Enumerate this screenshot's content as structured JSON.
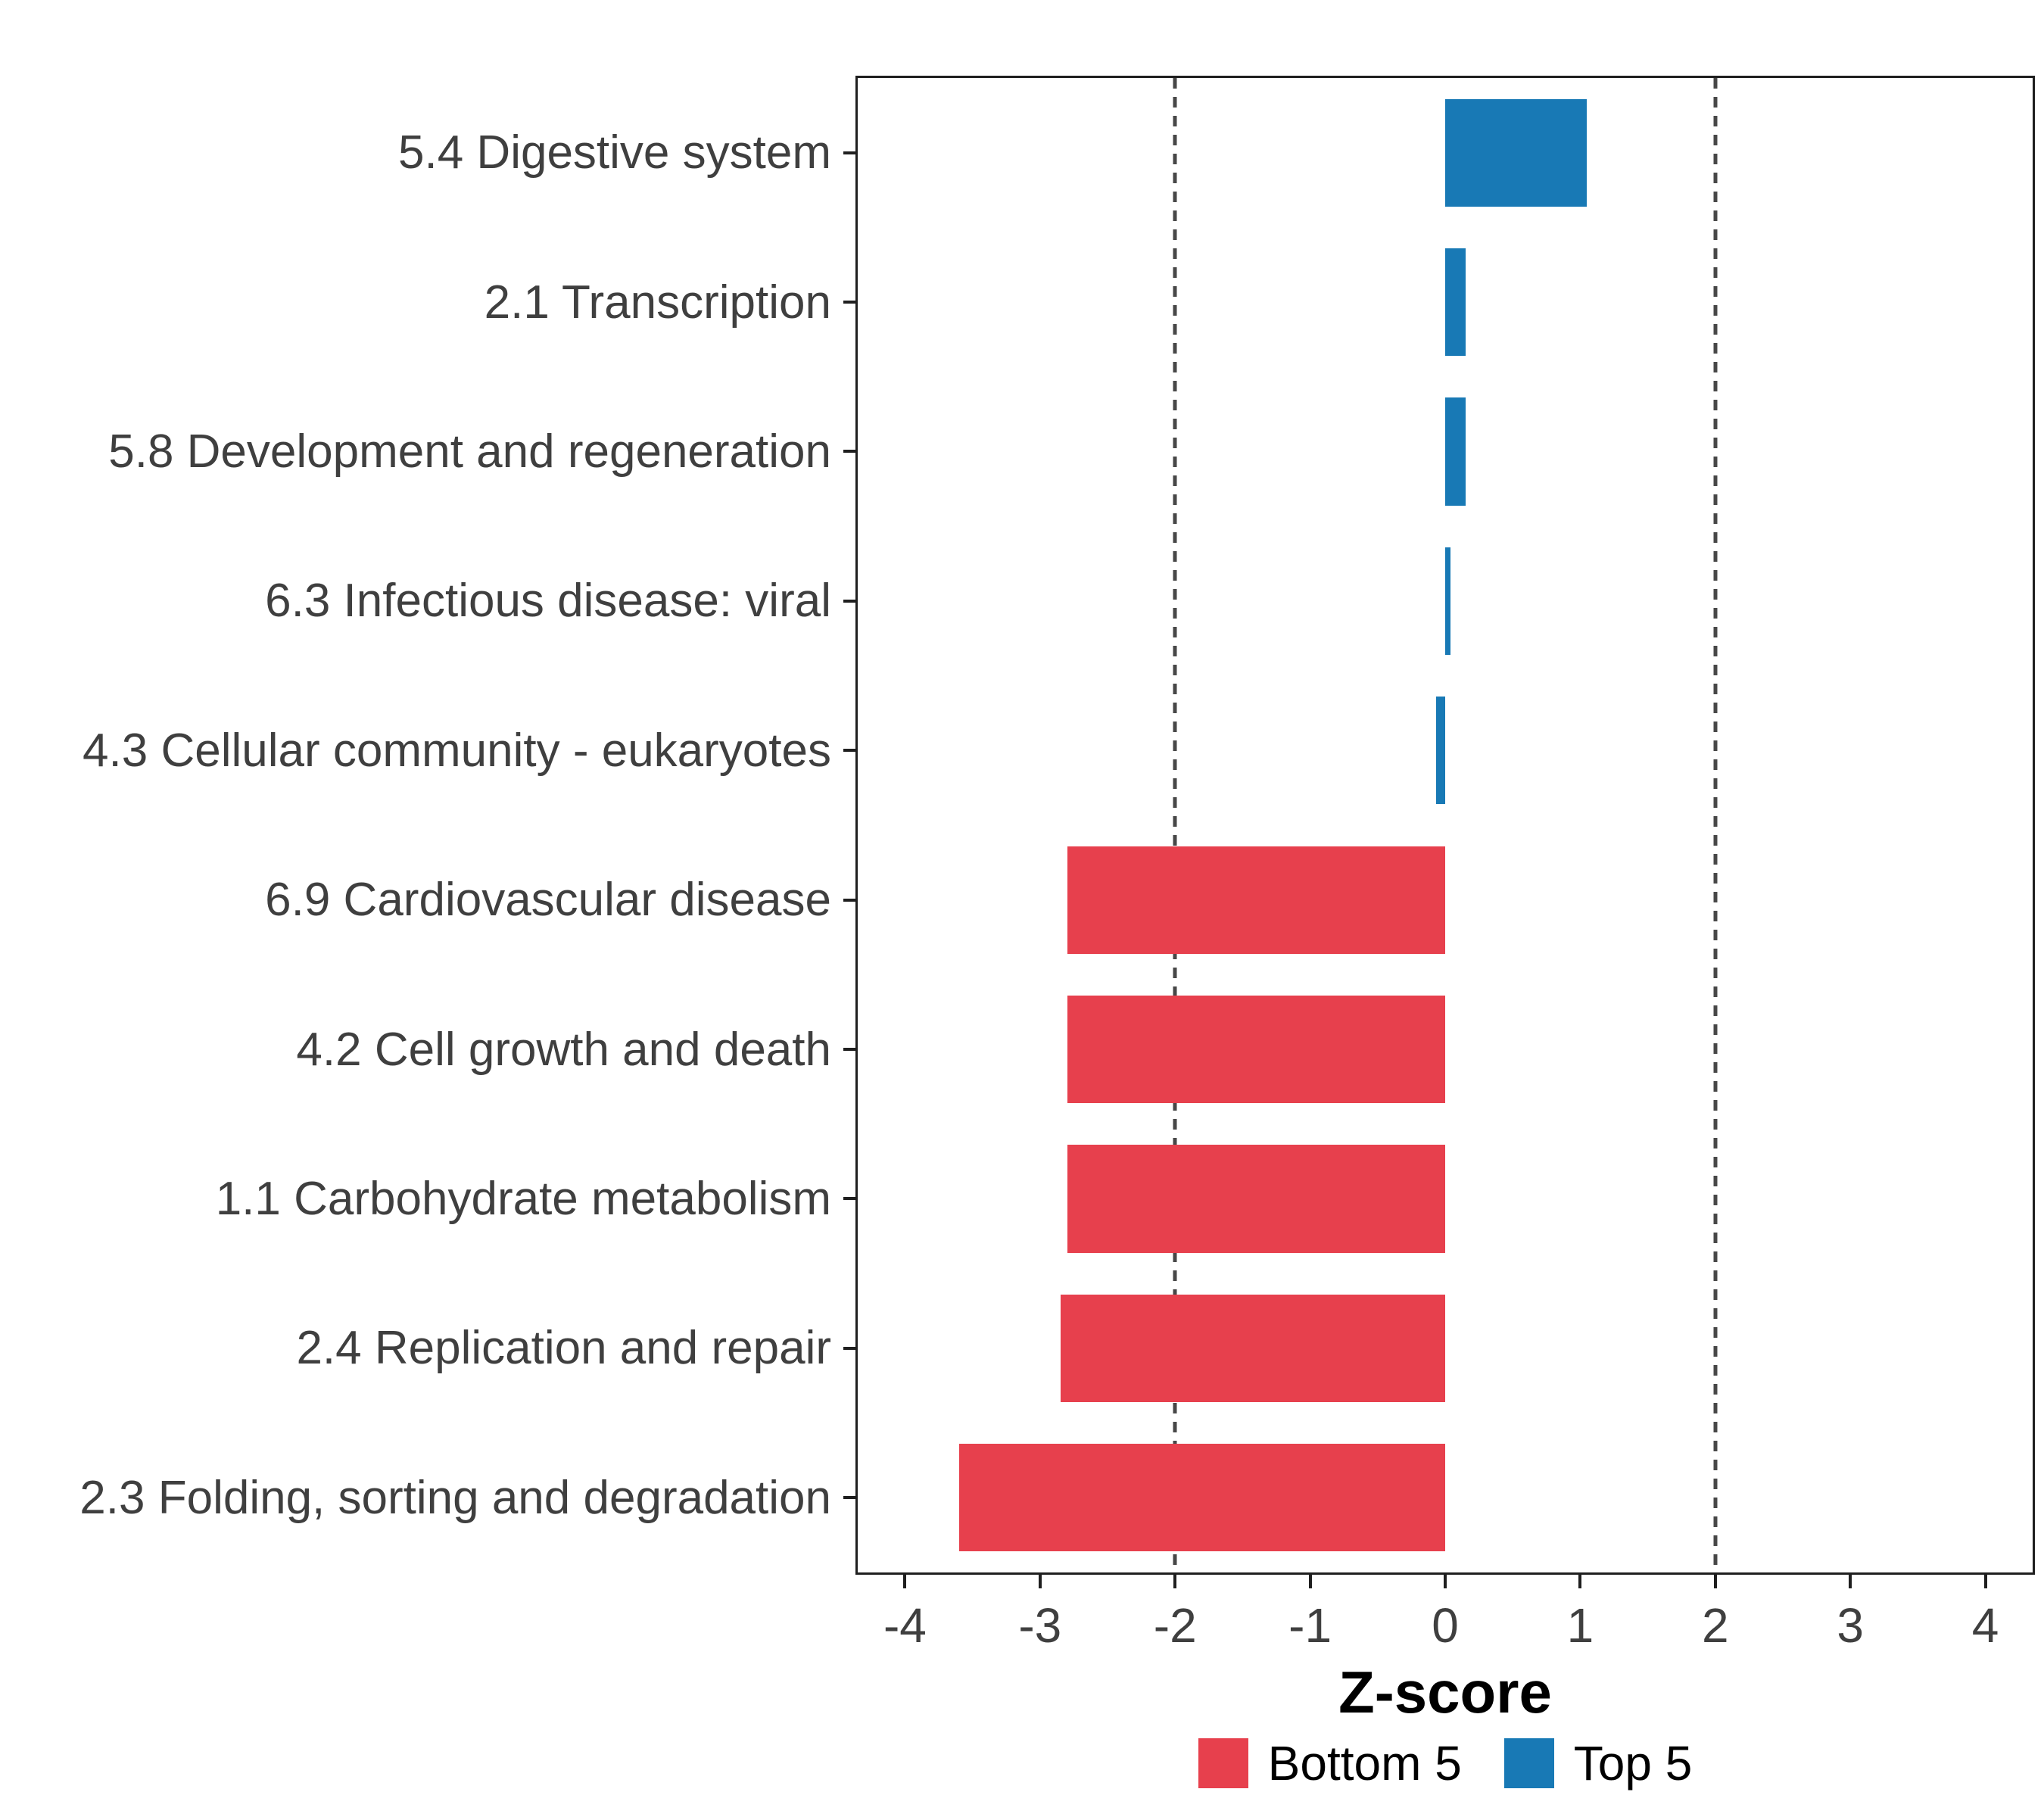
{
  "chart_data": {
    "type": "bar",
    "orientation": "horizontal",
    "title": "",
    "xlabel": "Z-score",
    "ylabel": "",
    "xlim": [
      -4.35,
      4.35
    ],
    "x_ticks": [
      -4,
      -3,
      -2,
      -1,
      0,
      1,
      2,
      3,
      4
    ],
    "reference_lines": [
      -2,
      2
    ],
    "reference_line_style": "dashed",
    "grid": false,
    "legend_position": "bottom",
    "bar_fraction": 0.72,
    "categories": [
      "5.4 Digestive system",
      "2.1 Transcription",
      "5.8 Development and regeneration",
      "6.3 Infectious disease: viral",
      "4.3 Cellular community - eukaryotes",
      "6.9 Cardiovascular disease",
      "4.2 Cell growth and death",
      "1.1 Carbohydrate metabolism",
      "2.4 Replication and repair",
      "2.3 Folding, sorting and degradation"
    ],
    "values": [
      1.05,
      0.15,
      0.15,
      0.04,
      -0.07,
      -2.8,
      -2.8,
      -2.8,
      -2.85,
      -3.6
    ],
    "series_groups": [
      "Top 5",
      "Top 5",
      "Top 5",
      "Top 5",
      "Top 5",
      "Bottom 5",
      "Bottom 5",
      "Bottom 5",
      "Bottom 5",
      "Bottom 5"
    ],
    "group_colors": {
      "Bottom 5": "#E7404D",
      "Top 5": "#1879B5"
    },
    "legend": [
      {
        "label": "Bottom 5",
        "color": "#E7404D"
      },
      {
        "label": "Top 5",
        "color": "#1879B5"
      }
    ],
    "panel_border_color": "#1f1f1f"
  }
}
